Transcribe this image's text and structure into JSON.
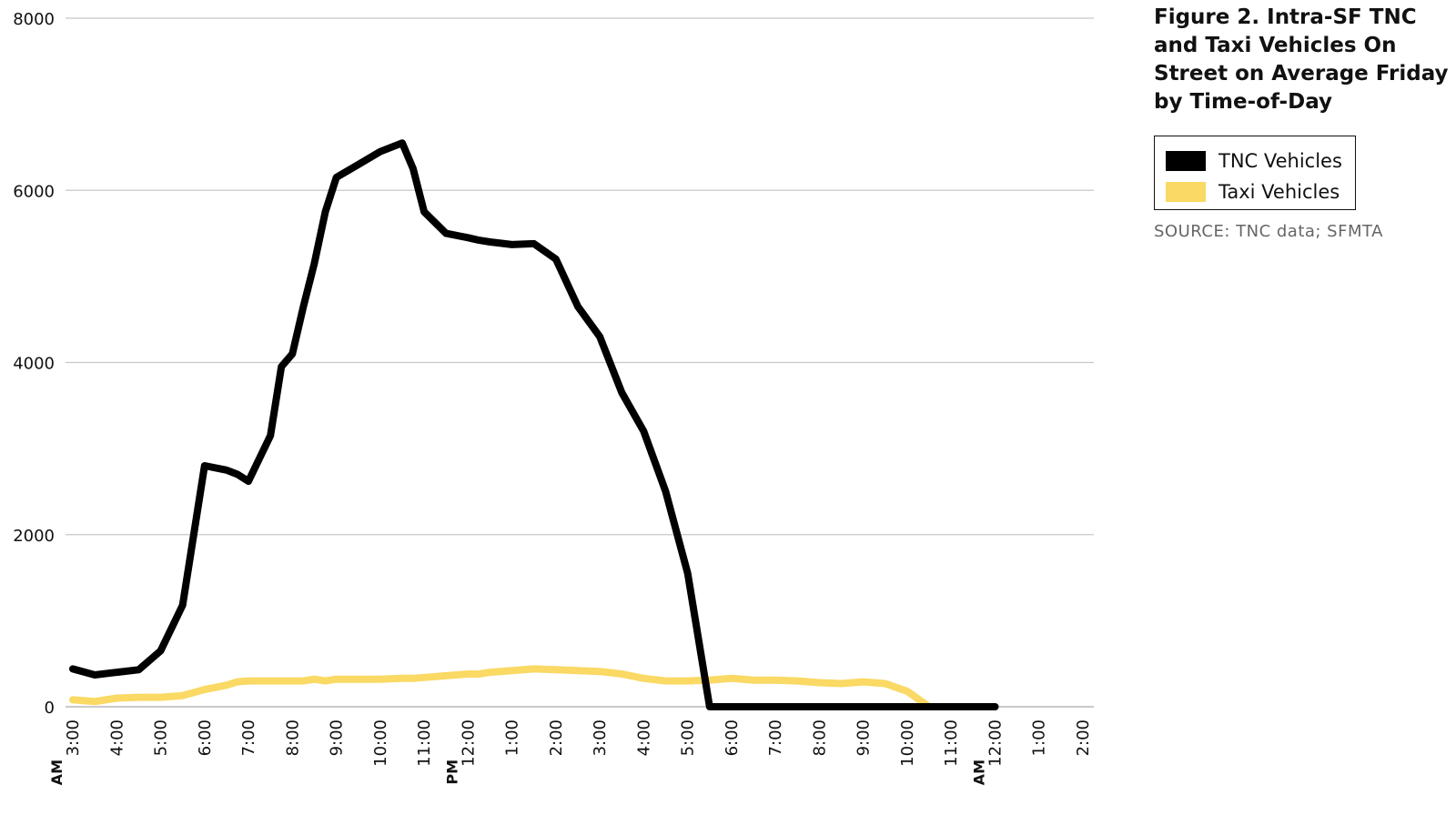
{
  "title": "Figure 2. Intra-SF TNC and Taxi Vehicles On Street on Average Friday by Time-of-Day",
  "source": "SOURCE: TNC data; SFMTA",
  "colors": {
    "tnc": "#000000",
    "taxi": "#FAD964",
    "grid": "#c8c8c8"
  },
  "chart_data": {
    "type": "line",
    "title": "Figure 2. Intra-SF TNC and Taxi Vehicles On Street on Average Friday by Time-of-Day",
    "legend_position": "right",
    "grid": true,
    "ylim": [
      0,
      8000
    ],
    "yticks": [
      0,
      2000,
      4000,
      6000,
      8000
    ],
    "xlim": [
      3,
      26
    ],
    "x_tick_values": [
      3,
      4,
      5,
      6,
      7,
      8,
      9,
      10,
      11,
      12,
      13,
      14,
      15,
      16,
      17,
      18,
      19,
      20,
      21,
      22,
      23,
      24,
      25,
      26
    ],
    "x_tick_labels": [
      "3:00",
      "4:00",
      "5:00",
      "6:00",
      "7:00",
      "8:00",
      "9:00",
      "10:00",
      "11:00",
      "12:00",
      "1:00",
      "2:00",
      "3:00",
      "4:00",
      "5:00",
      "6:00",
      "7:00",
      "8:00",
      "9:00",
      "10:00",
      "11:00",
      "12:00",
      "1:00",
      "2:00"
    ],
    "period_labels": [
      {
        "x": 3,
        "text": "AM"
      },
      {
        "x": 12,
        "text": "PM"
      },
      {
        "x": 24,
        "text": "AM"
      }
    ],
    "x": [
      3,
      3.5,
      4,
      4.5,
      5,
      5.5,
      6,
      6.5,
      6.75,
      7,
      7.5,
      7.75,
      8,
      8.25,
      8.5,
      8.75,
      9,
      9.5,
      10,
      10.5,
      10.75,
      11,
      11.5,
      12,
      12.25,
      12.5,
      13,
      13.5,
      14,
      14.5,
      15,
      15.5,
      16,
      16.5,
      17,
      17.5,
      18,
      18.5,
      19,
      19.5,
      20,
      20.5,
      21,
      21.5,
      22,
      22.5,
      23,
      23.5,
      24,
      24.5,
      25,
      25.5,
      26
    ],
    "series": [
      {
        "name": "TNC Vehicles",
        "values": [
          440,
          370,
          400,
          430,
          650,
          1180,
          2800,
          2750,
          2700,
          2620,
          3150,
          3950,
          4100,
          4650,
          5150,
          5750,
          6150,
          6300,
          6450,
          6550,
          6250,
          5750,
          5500,
          5450,
          5420,
          5400,
          5370,
          5380,
          5200,
          4650,
          4300,
          3650,
          3200,
          2500,
          1550,
          0,
          0,
          0,
          0,
          0,
          0,
          0,
          0,
          0,
          0,
          0,
          0,
          0,
          0,
          0,
          0,
          0,
          0
        ]
      },
      {
        "name": "Taxi Vehicles",
        "values": [
          80,
          60,
          100,
          110,
          110,
          130,
          200,
          250,
          290,
          300,
          300,
          300,
          300,
          300,
          320,
          300,
          320,
          320,
          320,
          330,
          330,
          340,
          360,
          380,
          380,
          400,
          420,
          440,
          430,
          420,
          410,
          380,
          330,
          300,
          300,
          310,
          330,
          310,
          310,
          300,
          280,
          270,
          290,
          270,
          180,
          0,
          0,
          0,
          0,
          0,
          0,
          0,
          0
        ]
      }
    ]
  }
}
